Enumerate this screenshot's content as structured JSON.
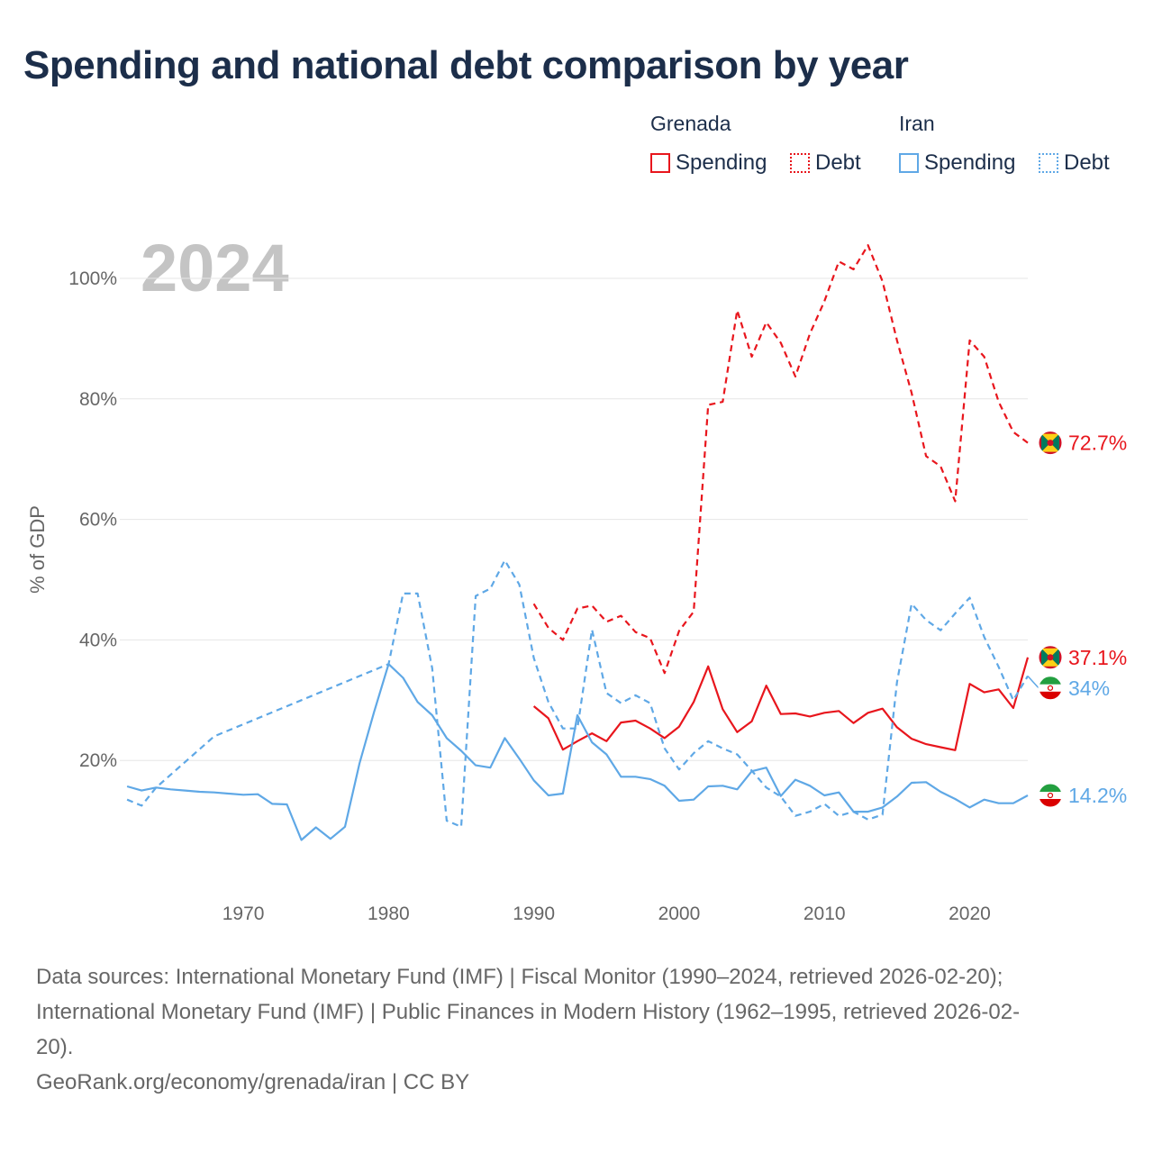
{
  "title": "Spending and national debt comparison by year",
  "current_year": "2024",
  "legend": {
    "groups": [
      {
        "name": "Grenada",
        "color": "#e8161d",
        "items": [
          {
            "label": "Spending",
            "style": "solid"
          },
          {
            "label": "Debt",
            "style": "dotted"
          }
        ]
      },
      {
        "name": "Iran",
        "color": "#5fa8e6",
        "items": [
          {
            "label": "Spending",
            "style": "solid"
          },
          {
            "label": "Debt",
            "style": "dotted"
          }
        ]
      }
    ]
  },
  "source": {
    "line1": "Data sources: International Monetary Fund (IMF) | Fiscal Monitor (1990–2024, retrieved 2026-02-20);",
    "line2": "International Monetary Fund (IMF) | Public Finances in Modern History (1962–1995, retrieved 2026-02-",
    "line3": "20).",
    "line4": "GeoRank.org/economy/grenada/iran | CC BY"
  },
  "chart_data": {
    "type": "line",
    "title": "Spending and national debt comparison by year",
    "xlabel": "",
    "ylabel": "% of GDP",
    "xlim": [
      1961.5,
      2024
    ],
    "ylim": [
      0,
      108
    ],
    "x_ticks": [
      1970,
      1980,
      1990,
      2000,
      2010,
      2020
    ],
    "y_ticks": [
      20,
      40,
      60,
      80,
      100
    ],
    "y_tick_labels": [
      "20%",
      "40%",
      "60%",
      "80%",
      "100%"
    ],
    "grid": true,
    "series": [
      {
        "name": "Grenada Debt",
        "country": "Grenada",
        "metric": "Debt",
        "color": "#e8161d",
        "dash": true,
        "end_label": "72.7%",
        "x": [
          1990,
          1991,
          1992,
          1993,
          1994,
          1995,
          1996,
          1997,
          1998,
          1999,
          2000,
          2001,
          2002,
          2003,
          2004,
          2005,
          2006,
          2007,
          2008,
          2009,
          2010,
          2011,
          2012,
          2013,
          2014,
          2015,
          2016,
          2017,
          2018,
          2019,
          2020,
          2021,
          2022,
          2023,
          2024
        ],
        "y": [
          46.0,
          42.0,
          40.0,
          45.2,
          45.7,
          43.0,
          44.0,
          41.3,
          40.3,
          34.5,
          41.5,
          44.7,
          79.0,
          79.5,
          94.7,
          87.0,
          92.7,
          89.3,
          83.7,
          90.8,
          96.2,
          102.8,
          101.5,
          105.5,
          99.5,
          89.7,
          81.0,
          70.5,
          68.8,
          63.0,
          89.7,
          87.0,
          79.5,
          74.5,
          72.7
        ]
      },
      {
        "name": "Grenada Spending",
        "country": "Grenada",
        "metric": "Spending",
        "color": "#e8161d",
        "dash": false,
        "end_label": "37.1%",
        "x": [
          1990,
          1991,
          1992,
          1993,
          1994,
          1995,
          1996,
          1997,
          1998,
          1999,
          2000,
          2001,
          2002,
          2003,
          2004,
          2005,
          2006,
          2007,
          2008,
          2009,
          2010,
          2011,
          2012,
          2013,
          2014,
          2015,
          2016,
          2017,
          2018,
          2019,
          2020,
          2021,
          2022,
          2023,
          2024
        ],
        "y": [
          29.0,
          27.0,
          21.8,
          23.2,
          24.5,
          23.2,
          26.3,
          26.6,
          25.3,
          23.7,
          25.6,
          29.7,
          35.6,
          28.5,
          24.7,
          26.5,
          32.4,
          27.7,
          27.8,
          27.3,
          27.9,
          28.2,
          26.2,
          27.9,
          28.6,
          25.5,
          23.6,
          22.7,
          22.2,
          21.7,
          32.7,
          31.3,
          31.8,
          28.7,
          37.1
        ]
      },
      {
        "name": "Iran Debt",
        "country": "Iran",
        "metric": "Debt",
        "color": "#5fa8e6",
        "dash": true,
        "end_label": "34%",
        "x": [
          1962,
          1963,
          1964,
          1968,
          1970,
          1971,
          1972,
          1973,
          1974,
          1975,
          1976,
          1977,
          1978,
          1979,
          1980,
          1981,
          1982,
          1983,
          1984,
          1985,
          1986,
          1987,
          1988,
          1989,
          1990,
          1991,
          1992,
          1993,
          1994,
          1995,
          1996,
          1997,
          1998,
          1999,
          2000,
          2001,
          2002,
          2003,
          2004,
          2005,
          2006,
          2007,
          2008,
          2009,
          2010,
          2011,
          2012,
          2013,
          2014,
          2015,
          2016,
          2017,
          2018,
          2019,
          2020,
          2021,
          2022,
          2023,
          2024
        ],
        "y": [
          13.5,
          12.5,
          15.5,
          24.0,
          26.0,
          27.0,
          28.0,
          29.0,
          30.0,
          31.0,
          32.0,
          33.0,
          34.0,
          35.0,
          36.0,
          47.7,
          47.7,
          35.3,
          10.0,
          9.0,
          47.3,
          48.5,
          53.2,
          49.2,
          37.0,
          29.7,
          25.3,
          25.3,
          41.7,
          31.2,
          29.5,
          30.8,
          29.5,
          22.0,
          18.5,
          21.2,
          23.2,
          22.0,
          21.0,
          18.3,
          15.5,
          14.0,
          10.8,
          11.5,
          12.8,
          10.8,
          11.5,
          10.2,
          11.0,
          33.0,
          46.0,
          43.3,
          41.6,
          44.4,
          47.0,
          40.5,
          35.5,
          30.0,
          34.0
        ]
      },
      {
        "name": "Iran Spending",
        "country": "Iran",
        "metric": "Spending",
        "color": "#5fa8e6",
        "dash": false,
        "end_label": "14.2%",
        "x": [
          1962,
          1963,
          1964,
          1965,
          1966,
          1967,
          1968,
          1970,
          1971,
          1972,
          1973,
          1974,
          1975,
          1976,
          1977,
          1978,
          1979,
          1980,
          1981,
          1982,
          1983,
          1984,
          1985,
          1986,
          1987,
          1988,
          1989,
          1990,
          1991,
          1992,
          1993,
          1994,
          1995,
          1996,
          1997,
          1998,
          1999,
          2000,
          2001,
          2002,
          2003,
          2004,
          2005,
          2006,
          2007,
          2008,
          2009,
          2010,
          2011,
          2012,
          2013,
          2014,
          2015,
          2016,
          2017,
          2018,
          2019,
          2020,
          2021,
          2022,
          2023,
          2024
        ],
        "y": [
          15.7,
          15.0,
          15.5,
          15.2,
          15.0,
          14.8,
          14.7,
          14.3,
          14.4,
          12.8,
          12.7,
          6.8,
          8.9,
          7.0,
          9.0,
          19.5,
          28.0,
          36.0,
          33.7,
          29.7,
          27.5,
          23.7,
          21.6,
          19.2,
          18.8,
          23.7,
          20.3,
          16.7,
          14.2,
          14.5,
          27.5,
          23.0,
          21.0,
          17.3,
          17.3,
          16.9,
          15.8,
          13.3,
          13.5,
          15.7,
          15.8,
          15.2,
          18.2,
          18.8,
          14.1,
          16.8,
          15.8,
          14.2,
          14.7,
          11.5,
          11.5,
          12.2,
          14.0,
          16.3,
          16.4,
          14.8,
          13.6,
          12.2,
          13.5,
          12.9,
          12.9,
          14.2
        ]
      }
    ],
    "end_markers": [
      {
        "flag": "grenada-flag",
        "label": "72.7%",
        "color": "#e8161d",
        "value": 72.7
      },
      {
        "flag": "grenada-flag",
        "label": "37.1%",
        "color": "#e8161d",
        "value": 37.1
      },
      {
        "flag": "iran-flag",
        "label": "34%",
        "color": "#5fa8e6",
        "value": 34.0
      },
      {
        "flag": "iran-flag",
        "label": "14.2%",
        "color": "#5fa8e6",
        "value": 14.2
      }
    ]
  }
}
